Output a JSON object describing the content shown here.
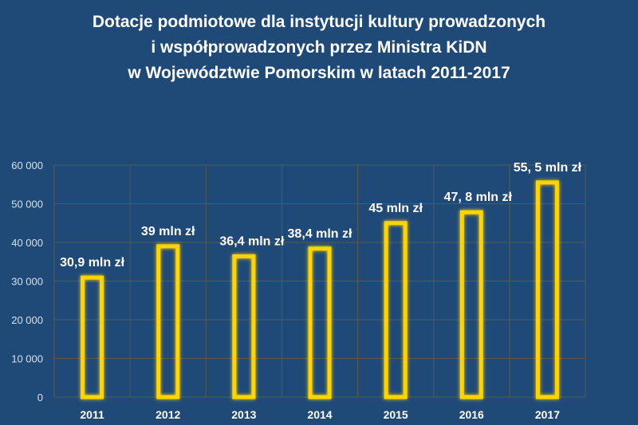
{
  "chart_data": {
    "type": "bar",
    "title": [
      "Dotacje podmiotowe dla instytucji kultury prowadzonych",
      "i współprowadzonych przez Ministra KiDN",
      "w Województwie Pomorskim w latach 2011-2017"
    ],
    "categories": [
      "2011",
      "2012",
      "2013",
      "2014",
      "2015",
      "2016",
      "2017"
    ],
    "values": [
      30900,
      39000,
      36400,
      38400,
      45000,
      47800,
      55500
    ],
    "data_labels": [
      "30,9 mln zł",
      "39 mln zł",
      "36,4 mln zł",
      "38,4 mln zł",
      "45 mln zł",
      "47, 8 mln zł",
      "55, 5 mln zł"
    ],
    "yticks": [
      "0",
      "10 000",
      "20 000",
      "30 000",
      "40 000",
      "50 000",
      "60 000"
    ],
    "ylim": [
      0,
      60000
    ],
    "xlabel": "",
    "ylabel": "",
    "grid": true,
    "colors": {
      "background": "#1f4a78",
      "bar_outline": "#ffd400",
      "grid": "#5a5a4a",
      "text": "#ffffff"
    }
  }
}
